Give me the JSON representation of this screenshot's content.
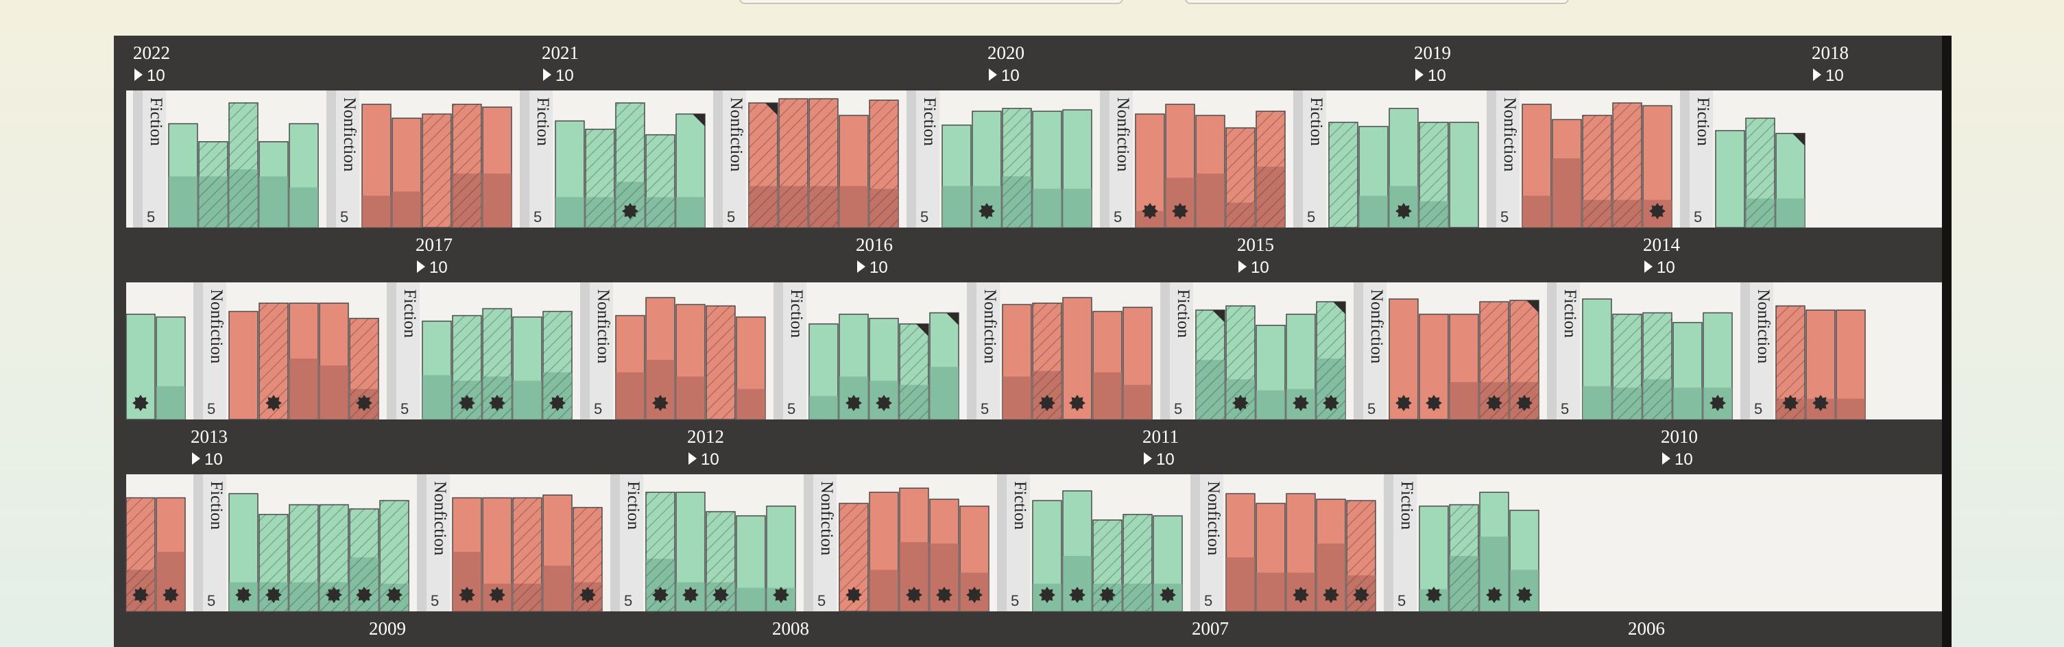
{
  "colors": {
    "fiction": "#a0d9b8",
    "fiction_dark": "#7ab499",
    "nonfiction": "#e58b79",
    "nonfiction_dark": "#b76b60",
    "panel": "#3a3836",
    "shelf": "#f3f2ef",
    "separator": "#dcdcdc",
    "badge": "#2e2c2a"
  },
  "labels": {
    "fiction": "Fiction",
    "nonfiction": "Nonfiction",
    "ref_high": "10",
    "ref_low": "5"
  },
  "chart_data": {
    "type": "bar",
    "units": "books",
    "years": [
      "2022",
      "2021",
      "2020",
      "2019",
      "2018",
      "2017",
      "2016",
      "2015",
      "2014",
      "2013",
      "2012",
      "2011",
      "2010",
      "2009",
      "2008",
      "2007",
      "2006"
    ],
    "shelves": [
      {
        "segments": [
          {
            "genre": "Fiction",
            "books": [
              {
                "h": 7.5,
                "d": 3.7,
                "hatch": false
              },
              {
                "h": 6.2,
                "d": 3.7,
                "hatch": true
              },
              {
                "h": 9,
                "d": 4.2,
                "hatch": true
              },
              {
                "h": 6.2,
                "d": 3.7,
                "hatch": false
              },
              {
                "h": 7.5,
                "d": 2.9,
                "hatch": false
              }
            ]
          },
          {
            "genre": "Nonfiction",
            "books": [
              {
                "h": 8.9,
                "d": 2.3,
                "hatch": false
              },
              {
                "h": 7.9,
                "d": 2.6,
                "hatch": false
              },
              {
                "h": 8.2,
                "d": 0,
                "hatch": true
              },
              {
                "h": 8.9,
                "d": 3.9,
                "hatch": true
              },
              {
                "h": 8.7,
                "d": 3.9,
                "hatch": false
              }
            ]
          },
          {
            "genre": "Fiction",
            "books": [
              {
                "h": 7.7,
                "d": 2.2,
                "hatch": false
              },
              {
                "h": 7.1,
                "d": 2.2,
                "hatch": true
              },
              {
                "h": 9,
                "d": 3.3,
                "hatch": true,
                "star": true
              },
              {
                "h": 6.7,
                "d": 2.2,
                "hatch": true
              },
              {
                "h": 8.2,
                "d": 2.2,
                "hatch": false,
                "corner": true
              }
            ]
          },
          {
            "genre": "Nonfiction",
            "books": [
              {
                "h": 9,
                "d": 3,
                "hatch": true,
                "corner": true
              },
              {
                "h": 9.3,
                "d": 3,
                "hatch": true
              },
              {
                "h": 9.3,
                "d": 3,
                "hatch": true
              },
              {
                "h": 8.1,
                "d": 3,
                "hatch": false
              },
              {
                "h": 9.2,
                "d": 2.8,
                "hatch": true
              }
            ]
          },
          {
            "genre": "Fiction",
            "books": [
              {
                "h": 7.4,
                "d": 3,
                "hatch": false
              },
              {
                "h": 8.4,
                "d": 3,
                "hatch": false,
                "star": true
              },
              {
                "h": 8.6,
                "d": 3.7,
                "hatch": true
              },
              {
                "h": 8.4,
                "d": 2.8,
                "hatch": false
              },
              {
                "h": 8.5,
                "d": 2.8,
                "hatch": false
              }
            ]
          },
          {
            "genre": "Nonfiction",
            "books": [
              {
                "h": 8.2,
                "d": 1.2,
                "hatch": false,
                "star": true
              },
              {
                "h": 8.9,
                "d": 3.6,
                "hatch": false,
                "star": true
              },
              {
                "h": 8.1,
                "d": 3.9,
                "hatch": false
              },
              {
                "h": 7.2,
                "d": 1.8,
                "hatch": true
              },
              {
                "h": 8.4,
                "d": 4.4,
                "hatch": true
              }
            ]
          },
          {
            "genre": "Fiction",
            "books": [
              {
                "h": 7.6,
                "d": 0,
                "hatch": true
              },
              {
                "h": 7.3,
                "d": 2.3,
                "hatch": false
              },
              {
                "h": 8.6,
                "d": 3,
                "hatch": false,
                "star": true
              },
              {
                "h": 7.6,
                "d": 1.9,
                "hatch": true
              },
              {
                "h": 7.6,
                "d": 0,
                "hatch": false
              }
            ]
          },
          {
            "genre": "Nonfiction",
            "books": [
              {
                "h": 8.9,
                "d": 2.3,
                "hatch": false
              },
              {
                "h": 7.8,
                "d": 5,
                "hatch": false
              },
              {
                "h": 8.1,
                "d": 2,
                "hatch": true
              },
              {
                "h": 9,
                "d": 2,
                "hatch": true
              },
              {
                "h": 8.8,
                "d": 2,
                "hatch": false,
                "star": true
              }
            ]
          },
          {
            "genre": "Fiction",
            "books": [
              {
                "h": 7,
                "d": 0,
                "hatch": false
              },
              {
                "h": 7.9,
                "d": 2.1,
                "hatch": true
              },
              {
                "h": 6.8,
                "d": 2.1,
                "hatch": false,
                "corner": true
              }
            ]
          }
        ]
      },
      {
        "segments": [
          {
            "genre": "Fiction",
            "books": [
              {
                "h": 7.6,
                "d": 0,
                "hatch": false,
                "star": true
              },
              {
                "h": 7.4,
                "d": 2.4,
                "hatch": false
              }
            ]
          },
          {
            "genre": "Nonfiction",
            "books": [
              {
                "h": 7.8,
                "d": 0,
                "hatch": false
              },
              {
                "h": 8.4,
                "d": 0,
                "hatch": true,
                "star": true
              },
              {
                "h": 8.4,
                "d": 4.4,
                "hatch": false
              },
              {
                "h": 8.4,
                "d": 3.9,
                "hatch": false
              },
              {
                "h": 7.3,
                "d": 2.2,
                "hatch": true,
                "star": true
              }
            ]
          },
          {
            "genre": "Fiction",
            "books": [
              {
                "h": 7.1,
                "d": 3.2,
                "hatch": false
              },
              {
                "h": 7.5,
                "d": 2.8,
                "hatch": true,
                "star": true
              },
              {
                "h": 8,
                "d": 3.1,
                "hatch": true,
                "star": true
              },
              {
                "h": 7.4,
                "d": 2.8,
                "hatch": false
              },
              {
                "h": 7.8,
                "d": 3.4,
                "hatch": true,
                "star": true
              }
            ]
          },
          {
            "genre": "Nonfiction",
            "books": [
              {
                "h": 7.5,
                "d": 3.4,
                "hatch": false
              },
              {
                "h": 8.8,
                "d": 4.3,
                "hatch": false,
                "star": true
              },
              {
                "h": 8.3,
                "d": 3.1,
                "hatch": false
              },
              {
                "h": 8.2,
                "d": 0,
                "hatch": true
              },
              {
                "h": 7.4,
                "d": 2.2,
                "hatch": false
              }
            ]
          },
          {
            "genre": "Fiction",
            "books": [
              {
                "h": 6.9,
                "d": 1.7,
                "hatch": false
              },
              {
                "h": 7.6,
                "d": 3.1,
                "hatch": false,
                "star": true
              },
              {
                "h": 7.3,
                "d": 2.8,
                "hatch": false,
                "star": true
              },
              {
                "h": 6.9,
                "d": 2.5,
                "hatch": true,
                "corner": true
              },
              {
                "h": 7.7,
                "d": 3.8,
                "hatch": false,
                "corner": true
              }
            ]
          },
          {
            "genre": "Nonfiction",
            "books": [
              {
                "h": 8.3,
                "d": 3.1,
                "hatch": false
              },
              {
                "h": 8.4,
                "d": 3.5,
                "hatch": true,
                "star": true
              },
              {
                "h": 8.8,
                "d": 0,
                "hatch": false,
                "star": true
              },
              {
                "h": 7.8,
                "d": 3.4,
                "hatch": false
              },
              {
                "h": 8.1,
                "d": 2.5,
                "hatch": false
              }
            ]
          },
          {
            "genre": "Fiction",
            "books": [
              {
                "h": 7.9,
                "d": 4.3,
                "hatch": true,
                "corner": true
              },
              {
                "h": 8.2,
                "d": 2.9,
                "hatch": true,
                "star": true
              },
              {
                "h": 6.8,
                "d": 2.1,
                "hatch": false
              },
              {
                "h": 7.6,
                "d": 2.2,
                "hatch": false,
                "star": true
              },
              {
                "h": 8.5,
                "d": 4.4,
                "hatch": true,
                "corner": true,
                "star": true
              }
            ]
          },
          {
            "genre": "Nonfiction",
            "books": [
              {
                "h": 8.7,
                "d": 0,
                "hatch": false,
                "star": true
              },
              {
                "h": 7.6,
                "d": 0,
                "hatch": false,
                "star": true
              },
              {
                "h": 7.6,
                "d": 2.7,
                "hatch": false
              },
              {
                "h": 8.5,
                "d": 2.7,
                "hatch": true,
                "star": true
              },
              {
                "h": 8.6,
                "d": 2.7,
                "hatch": true,
                "corner": true,
                "star": true
              }
            ]
          },
          {
            "genre": "Fiction",
            "books": [
              {
                "h": 8.7,
                "d": 2.4,
                "hatch": false
              },
              {
                "h": 7.6,
                "d": 2.3,
                "hatch": true
              },
              {
                "h": 7.7,
                "d": 2.9,
                "hatch": true
              },
              {
                "h": 7,
                "d": 2.3,
                "hatch": false
              },
              {
                "h": 7.7,
                "d": 2.3,
                "hatch": false,
                "star": true
              }
            ]
          },
          {
            "genre": "Nonfiction",
            "books": [
              {
                "h": 8.2,
                "d": 1.5,
                "hatch": true,
                "star": true
              },
              {
                "h": 7.9,
                "d": 1.5,
                "hatch": false,
                "star": true
              },
              {
                "h": 7.9,
                "d": 1.5,
                "hatch": false
              }
            ]
          }
        ]
      },
      {
        "segments": [
          {
            "genre": "Nonfiction",
            "books": [
              {
                "h": 8.2,
                "d": 3,
                "hatch": true,
                "star": true
              },
              {
                "h": 8.2,
                "d": 4.3,
                "hatch": false,
                "star": true
              }
            ]
          },
          {
            "genre": "Fiction",
            "books": [
              {
                "h": 8.5,
                "d": 2.1,
                "hatch": false,
                "star": true
              },
              {
                "h": 7,
                "d": 2.1,
                "hatch": true,
                "star": true
              },
              {
                "h": 7.7,
                "d": 2.1,
                "hatch": true
              },
              {
                "h": 7.7,
                "d": 2.1,
                "hatch": true,
                "star": true
              },
              {
                "h": 7.4,
                "d": 3.9,
                "hatch": true,
                "star": true
              },
              {
                "h": 8,
                "d": 2,
                "hatch": true,
                "star": true
              }
            ]
          },
          {
            "genre": "Nonfiction",
            "books": [
              {
                "h": 8.2,
                "d": 4.3,
                "hatch": false,
                "star": true
              },
              {
                "h": 8.2,
                "d": 2,
                "hatch": false,
                "star": true
              },
              {
                "h": 8.2,
                "d": 2,
                "hatch": true
              },
              {
                "h": 8.4,
                "d": 3.3,
                "hatch": false
              },
              {
                "h": 7.5,
                "d": 2.1,
                "hatch": true,
                "star": true
              }
            ]
          },
          {
            "genre": "Fiction",
            "books": [
              {
                "h": 8.6,
                "d": 3.8,
                "hatch": true,
                "star": true
              },
              {
                "h": 8.6,
                "d": 2.1,
                "hatch": false,
                "star": true
              },
              {
                "h": 7.2,
                "d": 2.1,
                "hatch": true,
                "star": true
              },
              {
                "h": 6.9,
                "d": 1.7,
                "hatch": false
              },
              {
                "h": 7.6,
                "d": 1.7,
                "hatch": false,
                "star": true
              }
            ]
          },
          {
            "genre": "Nonfiction",
            "books": [
              {
                "h": 7.8,
                "d": 0,
                "hatch": true,
                "star": true
              },
              {
                "h": 8.6,
                "d": 3,
                "hatch": false
              },
              {
                "h": 8.9,
                "d": 5,
                "hatch": false,
                "star": true
              },
              {
                "h": 8.1,
                "d": 4.9,
                "hatch": false,
                "star": true
              },
              {
                "h": 7.6,
                "d": 2.8,
                "hatch": false,
                "star": true
              }
            ]
          },
          {
            "genre": "Fiction",
            "books": [
              {
                "h": 8,
                "d": 2,
                "hatch": false,
                "star": true
              },
              {
                "h": 8.7,
                "d": 4,
                "hatch": false,
                "star": true
              },
              {
                "h": 6.6,
                "d": 2,
                "hatch": true,
                "star": true
              },
              {
                "h": 7,
                "d": 2,
                "hatch": true
              },
              {
                "h": 6.9,
                "d": 2,
                "hatch": false,
                "star": true
              }
            ]
          },
          {
            "genre": "Nonfiction",
            "books": [
              {
                "h": 8.5,
                "d": 3.9,
                "hatch": false
              },
              {
                "h": 7.8,
                "d": 2.8,
                "hatch": false
              },
              {
                "h": 8.5,
                "d": 2.8,
                "hatch": false,
                "star": true
              },
              {
                "h": 8.1,
                "d": 4.9,
                "hatch": false,
                "star": true
              },
              {
                "h": 8,
                "d": 2.6,
                "hatch": true,
                "star": true
              }
            ]
          },
          {
            "genre": "Fiction",
            "books": [
              {
                "h": 7.6,
                "d": 1.6,
                "hatch": false,
                "star": true
              },
              {
                "h": 7.7,
                "d": 4,
                "hatch": true
              },
              {
                "h": 8.6,
                "d": 5.4,
                "hatch": false,
                "star": true
              },
              {
                "h": 7.3,
                "d": 3,
                "hatch": false,
                "star": true
              }
            ]
          }
        ]
      }
    ]
  }
}
